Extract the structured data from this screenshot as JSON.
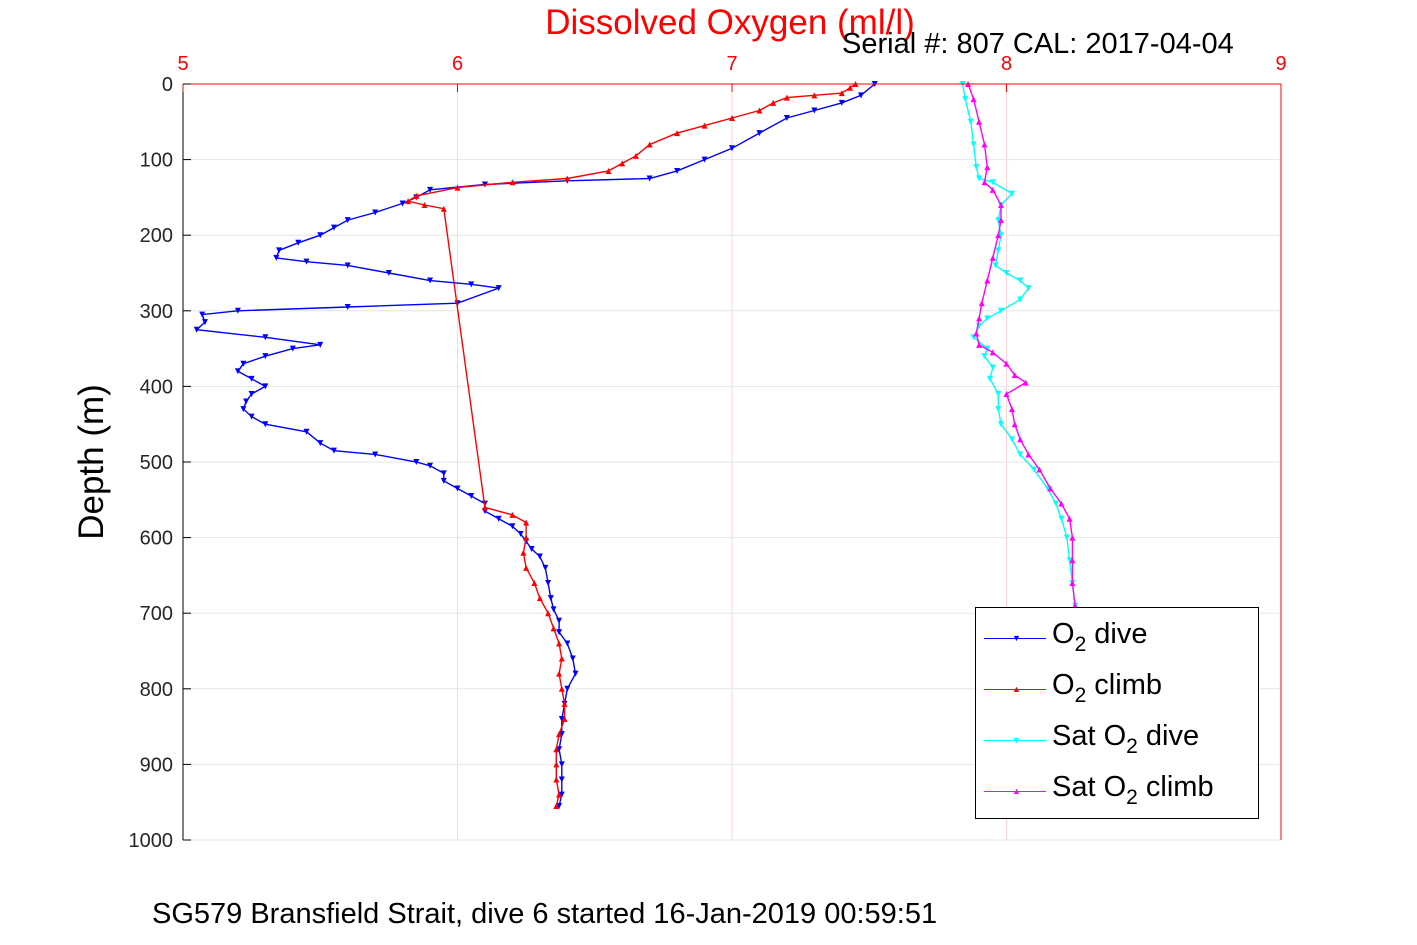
{
  "chart_data": {
    "type": "line",
    "title": "Dissolved Oxygen (ml/l)",
    "ylabel": "Depth (m)",
    "xlim": [
      5,
      9
    ],
    "ylim": [
      0,
      1000
    ],
    "y_reversed": true,
    "x_axis_location": "top",
    "grid": true,
    "legend_placement": "bottom-right",
    "x_ticks": [
      "5",
      "6",
      "7",
      "8",
      "9"
    ],
    "y_ticks": [
      "0",
      "100",
      "200",
      "300",
      "400",
      "500",
      "600",
      "700",
      "800",
      "900",
      "1000"
    ],
    "series": [
      {
        "name": "O2 dive",
        "color": "#0000ff",
        "marker": "triangle-down",
        "points": [
          [
            7.52,
            0
          ],
          [
            7.47,
            15
          ],
          [
            7.4,
            25
          ],
          [
            7.3,
            35
          ],
          [
            7.2,
            45
          ],
          [
            7.1,
            65
          ],
          [
            7.0,
            85
          ],
          [
            6.9,
            100
          ],
          [
            6.8,
            115
          ],
          [
            6.7,
            125
          ],
          [
            6.4,
            128
          ],
          [
            6.1,
            133
          ],
          [
            5.9,
            140
          ],
          [
            5.85,
            150
          ],
          [
            5.8,
            158
          ],
          [
            5.7,
            170
          ],
          [
            5.6,
            180
          ],
          [
            5.55,
            190
          ],
          [
            5.5,
            200
          ],
          [
            5.42,
            210
          ],
          [
            5.35,
            220
          ],
          [
            5.34,
            230
          ],
          [
            5.45,
            235
          ],
          [
            5.6,
            240
          ],
          [
            5.75,
            250
          ],
          [
            5.9,
            260
          ],
          [
            6.05,
            265
          ],
          [
            6.15,
            270
          ],
          [
            6.0,
            290
          ],
          [
            5.6,
            295
          ],
          [
            5.2,
            300
          ],
          [
            5.07,
            305
          ],
          [
            5.08,
            315
          ],
          [
            5.05,
            325
          ],
          [
            5.3,
            335
          ],
          [
            5.5,
            345
          ],
          [
            5.4,
            350
          ],
          [
            5.3,
            360
          ],
          [
            5.22,
            370
          ],
          [
            5.2,
            380
          ],
          [
            5.25,
            390
          ],
          [
            5.3,
            400
          ],
          [
            5.25,
            410
          ],
          [
            5.23,
            420
          ],
          [
            5.22,
            430
          ],
          [
            5.25,
            440
          ],
          [
            5.3,
            450
          ],
          [
            5.45,
            460
          ],
          [
            5.5,
            475
          ],
          [
            5.55,
            485
          ],
          [
            5.7,
            490
          ],
          [
            5.85,
            500
          ],
          [
            5.9,
            505
          ],
          [
            5.95,
            515
          ],
          [
            5.95,
            525
          ],
          [
            6.0,
            535
          ],
          [
            6.05,
            545
          ],
          [
            6.1,
            555
          ],
          [
            6.1,
            565
          ],
          [
            6.15,
            575
          ],
          [
            6.2,
            585
          ],
          [
            6.23,
            595
          ],
          [
            6.25,
            605
          ],
          [
            6.27,
            615
          ],
          [
            6.3,
            625
          ],
          [
            6.32,
            640
          ],
          [
            6.33,
            660
          ],
          [
            6.34,
            680
          ],
          [
            6.35,
            695
          ],
          [
            6.37,
            710
          ],
          [
            6.37,
            725
          ],
          [
            6.4,
            740
          ],
          [
            6.42,
            760
          ],
          [
            6.43,
            780
          ],
          [
            6.4,
            800
          ],
          [
            6.39,
            820
          ],
          [
            6.38,
            840
          ],
          [
            6.38,
            860
          ],
          [
            6.37,
            880
          ],
          [
            6.38,
            900
          ],
          [
            6.38,
            920
          ],
          [
            6.38,
            940
          ],
          [
            6.37,
            955
          ]
        ]
      },
      {
        "name": "O2 climb",
        "color": "#ff0000",
        "marker": "triangle-up",
        "points": [
          [
            7.45,
            0
          ],
          [
            7.43,
            5
          ],
          [
            7.4,
            12
          ],
          [
            7.3,
            15
          ],
          [
            7.2,
            18
          ],
          [
            7.15,
            25
          ],
          [
            7.1,
            35
          ],
          [
            7.0,
            45
          ],
          [
            6.9,
            55
          ],
          [
            6.8,
            65
          ],
          [
            6.7,
            80
          ],
          [
            6.65,
            95
          ],
          [
            6.6,
            105
          ],
          [
            6.55,
            115
          ],
          [
            6.4,
            125
          ],
          [
            6.2,
            130
          ],
          [
            6.0,
            137
          ],
          [
            5.85,
            148
          ],
          [
            5.82,
            155
          ],
          [
            5.88,
            160
          ],
          [
            5.95,
            165
          ],
          [
            6.1,
            560
          ],
          [
            6.2,
            570
          ],
          [
            6.25,
            580
          ],
          [
            6.25,
            600
          ],
          [
            6.24,
            620
          ],
          [
            6.25,
            640
          ],
          [
            6.28,
            660
          ],
          [
            6.3,
            680
          ],
          [
            6.33,
            700
          ],
          [
            6.35,
            720
          ],
          [
            6.37,
            740
          ],
          [
            6.38,
            760
          ],
          [
            6.37,
            780
          ],
          [
            6.38,
            800
          ],
          [
            6.39,
            820
          ],
          [
            6.39,
            840
          ],
          [
            6.37,
            860
          ],
          [
            6.36,
            880
          ],
          [
            6.36,
            900
          ],
          [
            6.36,
            920
          ],
          [
            6.37,
            940
          ],
          [
            6.36,
            955
          ]
        ]
      },
      {
        "name": "Sat O2 dive",
        "color": "#00ffff",
        "marker": "triangle-down",
        "points": [
          [
            7.84,
            0
          ],
          [
            7.85,
            20
          ],
          [
            7.87,
            50
          ],
          [
            7.88,
            80
          ],
          [
            7.89,
            110
          ],
          [
            7.9,
            125
          ],
          [
            7.95,
            130
          ],
          [
            8.02,
            145
          ],
          [
            7.98,
            160
          ],
          [
            7.97,
            180
          ],
          [
            7.98,
            200
          ],
          [
            7.97,
            220
          ],
          [
            7.96,
            240
          ],
          [
            8.0,
            250
          ],
          [
            8.05,
            260
          ],
          [
            8.08,
            270
          ],
          [
            8.05,
            285
          ],
          [
            7.98,
            300
          ],
          [
            7.93,
            310
          ],
          [
            7.9,
            320
          ],
          [
            7.88,
            335
          ],
          [
            7.93,
            350
          ],
          [
            7.92,
            360
          ],
          [
            7.95,
            375
          ],
          [
            7.94,
            390
          ],
          [
            7.97,
            410
          ],
          [
            7.97,
            430
          ],
          [
            7.98,
            450
          ],
          [
            8.02,
            470
          ],
          [
            8.05,
            490
          ],
          [
            8.1,
            510
          ],
          [
            8.15,
            535
          ],
          [
            8.18,
            555
          ],
          [
            8.2,
            575
          ],
          [
            8.22,
            600
          ],
          [
            8.23,
            630
          ],
          [
            8.24,
            660
          ],
          [
            8.25,
            690
          ]
        ]
      },
      {
        "name": "Sat O2 climb",
        "color": "#ff00ff",
        "marker": "triangle-up",
        "points": [
          [
            7.86,
            0
          ],
          [
            7.88,
            20
          ],
          [
            7.9,
            50
          ],
          [
            7.92,
            80
          ],
          [
            7.93,
            110
          ],
          [
            7.92,
            130
          ],
          [
            7.95,
            140
          ],
          [
            7.98,
            160
          ],
          [
            7.98,
            180
          ],
          [
            7.97,
            200
          ],
          [
            7.95,
            230
          ],
          [
            7.93,
            260
          ],
          [
            7.91,
            290
          ],
          [
            7.9,
            310
          ],
          [
            7.89,
            330
          ],
          [
            7.9,
            345
          ],
          [
            7.95,
            355
          ],
          [
            8.0,
            370
          ],
          [
            8.03,
            385
          ],
          [
            8.07,
            395
          ],
          [
            8.0,
            410
          ],
          [
            8.02,
            430
          ],
          [
            8.03,
            450
          ],
          [
            8.05,
            470
          ],
          [
            8.08,
            490
          ],
          [
            8.12,
            510
          ],
          [
            8.16,
            535
          ],
          [
            8.2,
            555
          ],
          [
            8.23,
            575
          ],
          [
            8.24,
            600
          ],
          [
            8.24,
            630
          ],
          [
            8.24,
            660
          ],
          [
            8.25,
            690
          ]
        ]
      }
    ]
  },
  "legend": {
    "items": [
      {
        "prefix": "O",
        "sub": "2",
        "suffix": " dive",
        "color": "#0000ff",
        "marker": "▼"
      },
      {
        "prefix": "O",
        "sub": "2",
        "suffix": " climb",
        "color": "#ff0000",
        "marker": "▲"
      },
      {
        "prefix": "Sat O",
        "sub": "2",
        "suffix": " dive",
        "color": "#00ffff",
        "marker": "▼"
      },
      {
        "prefix": "Sat O",
        "sub": "2",
        "suffix": " climb",
        "color": "#ff00ff",
        "marker": "▲"
      }
    ]
  },
  "annotations": {
    "serial": "Serial #: 807  CAL: 2017-04-04",
    "footer": "SG579 Bransfield Strait, dive 6 started 16-Jan-2019 00:59:51"
  }
}
